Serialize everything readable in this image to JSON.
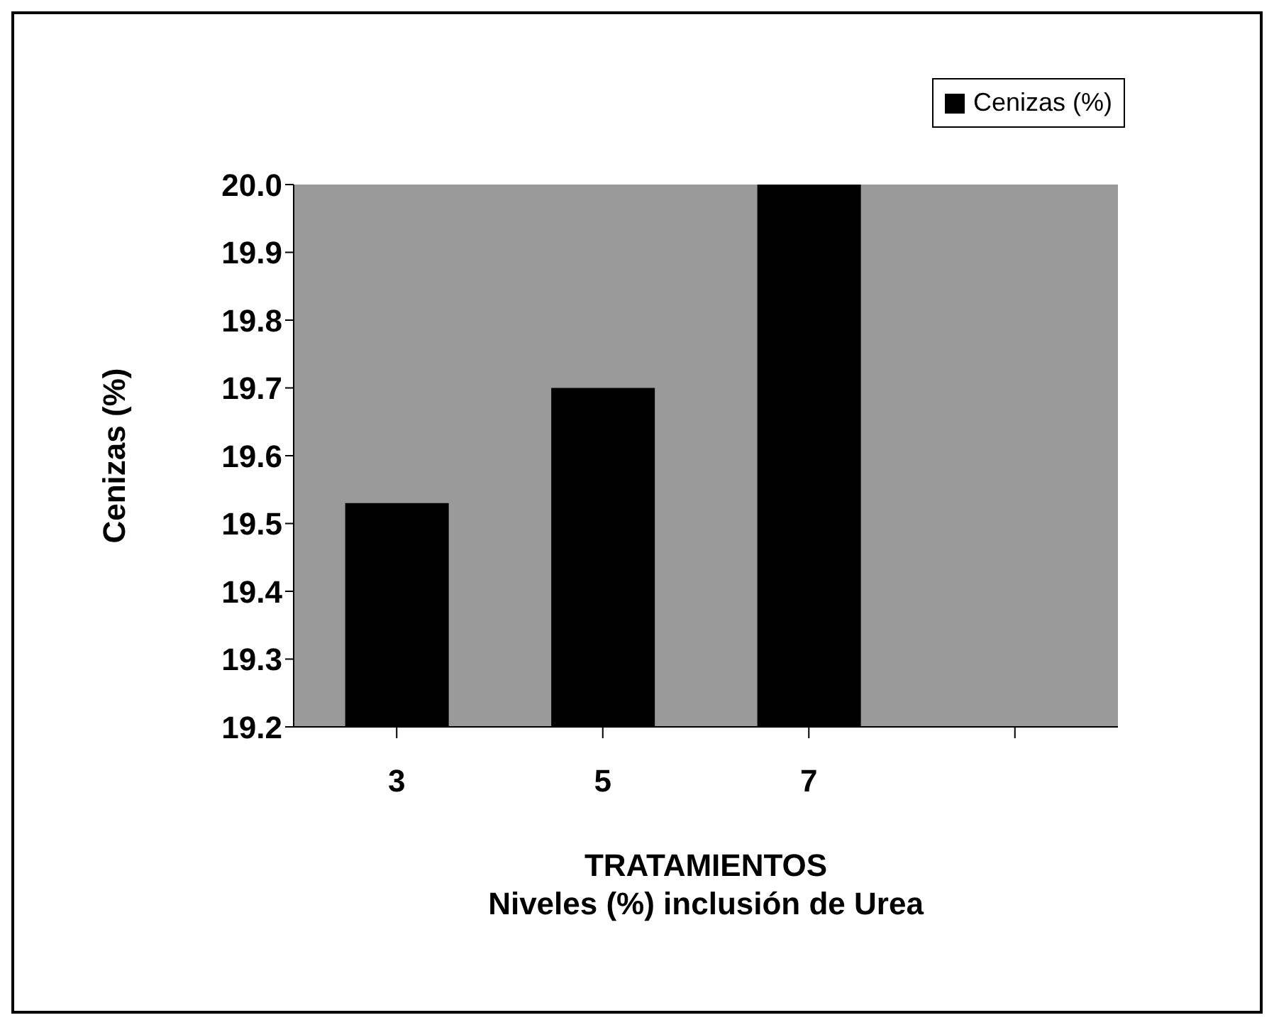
{
  "chart_data": {
    "type": "bar",
    "xlabel": "TRATAMIENTOS\nNiveles (%) inclusión de Urea",
    "ylabel": "Cenizas (%)",
    "categories": [
      "3",
      "5",
      "7",
      null
    ],
    "series": [
      {
        "name": "Cenizas (%)",
        "color": "#000000",
        "values": [
          19.53,
          19.7,
          20.0,
          null
        ]
      }
    ],
    "ylim": [
      19.2,
      20.0
    ],
    "yticks": [
      19.2,
      19.3,
      19.4,
      19.5,
      19.6,
      19.7,
      19.8,
      19.9,
      {
        "value": 20,
        "label": "20.0"
      }
    ],
    "legend": "top right"
  }
}
